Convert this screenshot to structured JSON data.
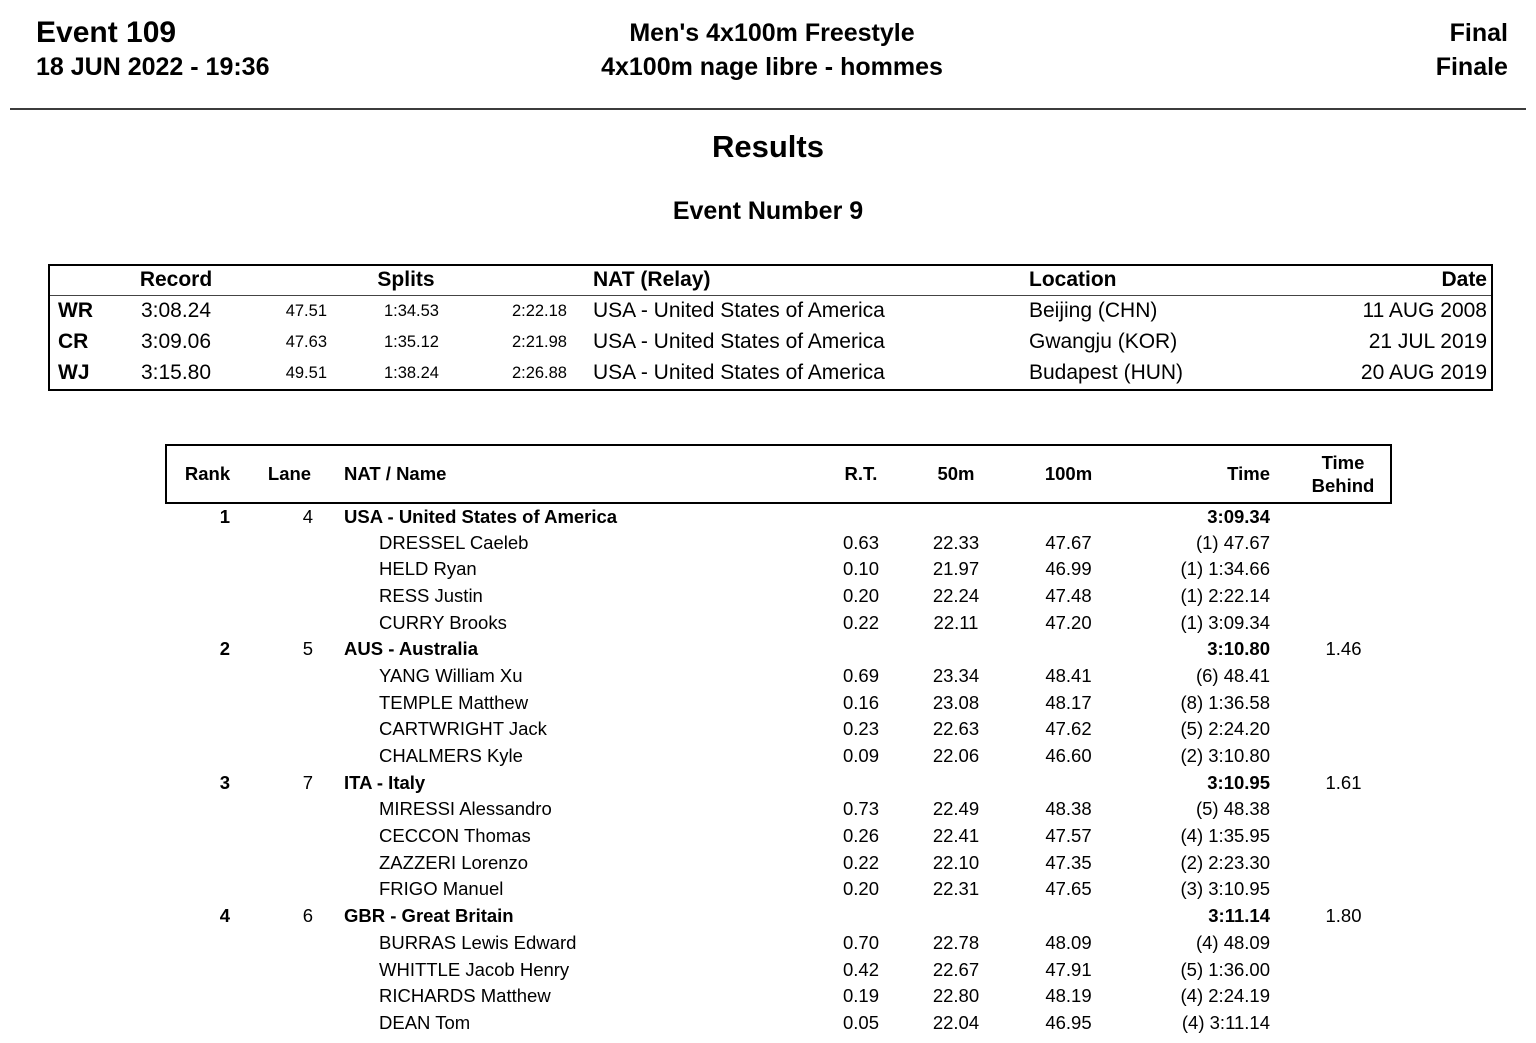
{
  "header": {
    "event_label": "Event 109",
    "datetime": "18 JUN 2022 - 19:36",
    "title_en": "Men's 4x100m Freestyle",
    "title_fr": "4x100m nage libre - hommes",
    "round_en": "Final",
    "round_fr": "Finale"
  },
  "titles": {
    "main": "Results",
    "subtitle": "Event Number 9"
  },
  "records": {
    "headers": {
      "record": "Record",
      "splits": "Splits",
      "nat": "NAT (Relay)",
      "location": "Location",
      "date": "Date"
    },
    "rows": [
      {
        "code": "WR",
        "time": "3:08.24",
        "splits": [
          "47.51",
          "1:34.53",
          "2:22.18"
        ],
        "nat": "USA - United States of America",
        "location": "Beijing (CHN)",
        "date": "11 AUG 2008"
      },
      {
        "code": "CR",
        "time": "3:09.06",
        "splits": [
          "47.63",
          "1:35.12",
          "2:21.98"
        ],
        "nat": "USA - United States of America",
        "location": "Gwangju (KOR)",
        "date": "21 JUL 2019"
      },
      {
        "code": "WJ",
        "time": "3:15.80",
        "splits": [
          "49.51",
          "1:38.24",
          "2:26.88"
        ],
        "nat": "USA - United States of America",
        "location": "Budapest (HUN)",
        "date": "20 AUG 2019"
      }
    ]
  },
  "results": {
    "headers": {
      "rank": "Rank",
      "lane": "Lane",
      "nat_name": "NAT / Name",
      "rt": "R.T.",
      "m50": "50m",
      "m100": "100m",
      "time": "Time",
      "behind_line1": "Time",
      "behind_line2": "Behind"
    },
    "teams": [
      {
        "rank": "1",
        "lane": "4",
        "name": "USA - United States of America",
        "time": "3:09.34",
        "behind": "",
        "swimmers": [
          {
            "name": "DRESSEL Caeleb",
            "rt": "0.63",
            "m50": "22.33",
            "m100": "47.67",
            "cumulative": "(1) 47.67"
          },
          {
            "name": "HELD Ryan",
            "rt": "0.10",
            "m50": "21.97",
            "m100": "46.99",
            "cumulative": "(1) 1:34.66"
          },
          {
            "name": "RESS Justin",
            "rt": "0.20",
            "m50": "22.24",
            "m100": "47.48",
            "cumulative": "(1) 2:22.14"
          },
          {
            "name": "CURRY Brooks",
            "rt": "0.22",
            "m50": "22.11",
            "m100": "47.20",
            "cumulative": "(1) 3:09.34"
          }
        ]
      },
      {
        "rank": "2",
        "lane": "5",
        "name": "AUS - Australia",
        "time": "3:10.80",
        "behind": "1.46",
        "swimmers": [
          {
            "name": "YANG William Xu",
            "rt": "0.69",
            "m50": "23.34",
            "m100": "48.41",
            "cumulative": "(6) 48.41"
          },
          {
            "name": "TEMPLE Matthew",
            "rt": "0.16",
            "m50": "23.08",
            "m100": "48.17",
            "cumulative": "(8) 1:36.58"
          },
          {
            "name": "CARTWRIGHT Jack",
            "rt": "0.23",
            "m50": "22.63",
            "m100": "47.62",
            "cumulative": "(5) 2:24.20"
          },
          {
            "name": "CHALMERS Kyle",
            "rt": "0.09",
            "m50": "22.06",
            "m100": "46.60",
            "cumulative": "(2) 3:10.80"
          }
        ]
      },
      {
        "rank": "3",
        "lane": "7",
        "name": "ITA - Italy",
        "time": "3:10.95",
        "behind": "1.61",
        "swimmers": [
          {
            "name": "MIRESSI Alessandro",
            "rt": "0.73",
            "m50": "22.49",
            "m100": "48.38",
            "cumulative": "(5) 48.38"
          },
          {
            "name": "CECCON Thomas",
            "rt": "0.26",
            "m50": "22.41",
            "m100": "47.57",
            "cumulative": "(4) 1:35.95"
          },
          {
            "name": "ZAZZERI Lorenzo",
            "rt": "0.22",
            "m50": "22.10",
            "m100": "47.35",
            "cumulative": "(2) 2:23.30"
          },
          {
            "name": "FRIGO Manuel",
            "rt": "0.20",
            "m50": "22.31",
            "m100": "47.65",
            "cumulative": "(3) 3:10.95"
          }
        ]
      },
      {
        "rank": "4",
        "lane": "6",
        "name": "GBR - Great Britain",
        "time": "3:11.14",
        "behind": "1.80",
        "swimmers": [
          {
            "name": "BURRAS Lewis Edward",
            "rt": "0.70",
            "m50": "22.78",
            "m100": "48.09",
            "cumulative": "(4) 48.09"
          },
          {
            "name": "WHITTLE Jacob Henry",
            "rt": "0.42",
            "m50": "22.67",
            "m100": "47.91",
            "cumulative": "(5) 1:36.00"
          },
          {
            "name": "RICHARDS Matthew",
            "rt": "0.19",
            "m50": "22.80",
            "m100": "48.19",
            "cumulative": "(4) 2:24.19"
          },
          {
            "name": "DEAN Tom",
            "rt": "0.05",
            "m50": "22.04",
            "m100": "46.95",
            "cumulative": "(4) 3:11.14"
          }
        ]
      }
    ]
  }
}
